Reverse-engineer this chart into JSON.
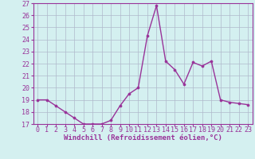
{
  "x": [
    0,
    1,
    2,
    3,
    4,
    5,
    6,
    7,
    8,
    9,
    10,
    11,
    12,
    13,
    14,
    15,
    16,
    17,
    18,
    19,
    20,
    21,
    22,
    23
  ],
  "y": [
    19.0,
    19.0,
    18.5,
    18.0,
    17.5,
    17.0,
    17.0,
    17.0,
    17.3,
    18.5,
    19.5,
    20.0,
    24.3,
    26.8,
    22.2,
    21.5,
    20.3,
    22.1,
    21.8,
    22.2,
    19.0,
    18.8,
    18.7,
    18.6
  ],
  "line_color": "#993399",
  "marker": "o",
  "marker_size": 2.2,
  "linewidth": 1.0,
  "xlabel": "Windchill (Refroidissement éolien,°C)",
  "ylim": [
    17,
    27
  ],
  "xlim_min": -0.5,
  "xlim_max": 23.5,
  "yticks": [
    17,
    18,
    19,
    20,
    21,
    22,
    23,
    24,
    25,
    26,
    27
  ],
  "xticks": [
    0,
    1,
    2,
    3,
    4,
    5,
    6,
    7,
    8,
    9,
    10,
    11,
    12,
    13,
    14,
    15,
    16,
    17,
    18,
    19,
    20,
    21,
    22,
    23
  ],
  "background_color": "#d4f0f0",
  "grid_color": "#b0b8cc",
  "xlabel_fontsize": 6.5,
  "tick_fontsize": 6.0
}
